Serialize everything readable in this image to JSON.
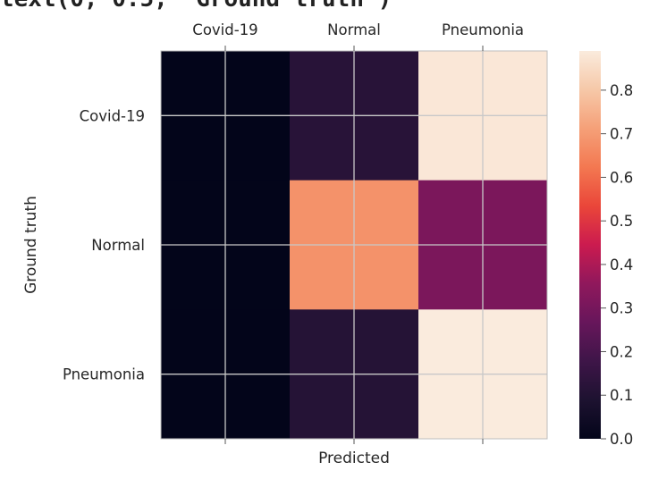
{
  "code_fragment": "text(0, 0.5, 'Ground truth')",
  "chart_data": {
    "type": "heatmap",
    "title": "",
    "xlabel": "Predicted",
    "ylabel": "Ground truth",
    "x_categories": [
      "Covid-19",
      "Normal",
      "Pneumonia"
    ],
    "y_categories": [
      "Covid-19",
      "Normal",
      "Pneumonia"
    ],
    "values": [
      [
        0.0,
        0.12,
        0.88
      ],
      [
        0.0,
        0.68,
        0.31
      ],
      [
        0.0,
        0.11,
        0.89
      ]
    ],
    "colorbar": {
      "colormap": "rocket",
      "min": 0.0,
      "max": 0.89,
      "ticks": [
        "0.0",
        "0.1",
        "0.2",
        "0.3",
        "0.4",
        "0.5",
        "0.6",
        "0.7",
        "0.8"
      ]
    },
    "grid": true,
    "x_tick_position": "top"
  }
}
